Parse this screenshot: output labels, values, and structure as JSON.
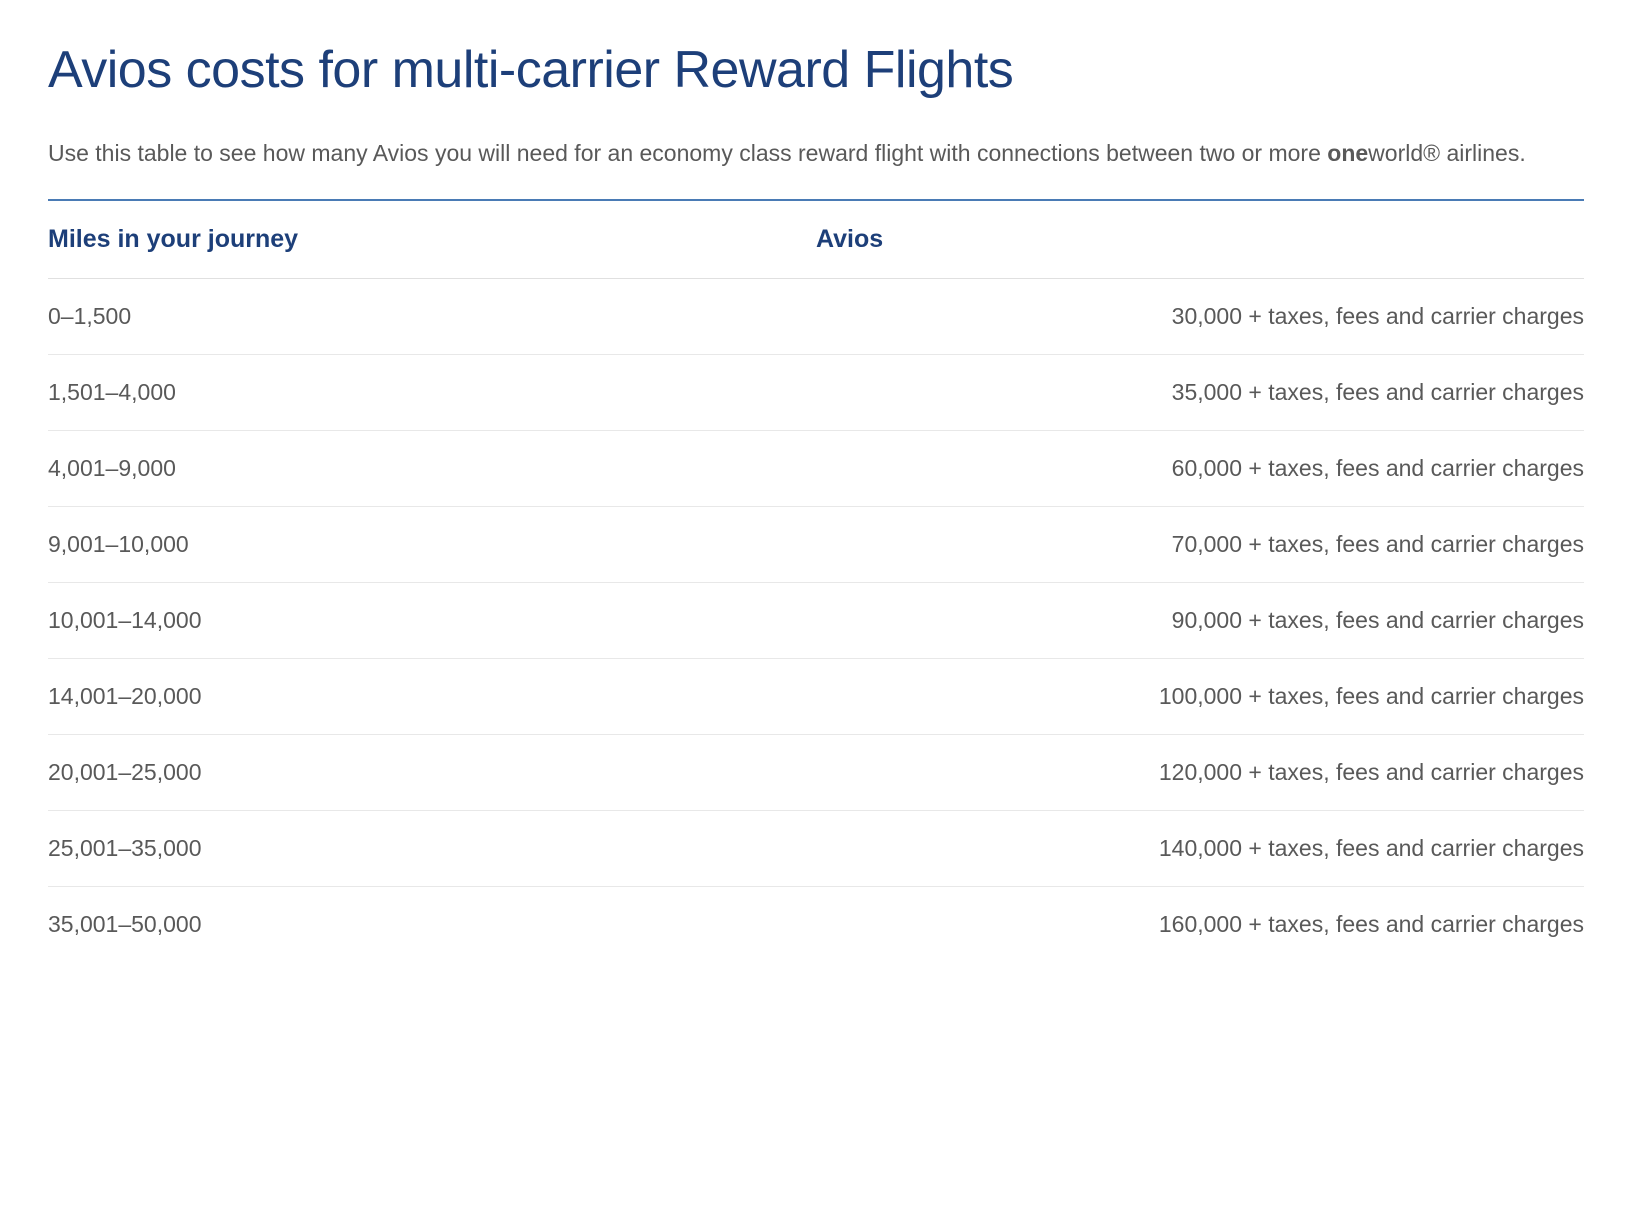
{
  "title": "Avios costs for multi-carrier Reward Flights",
  "description": {
    "prefix": "Use this table to see how many Avios you will need for an economy class reward flight with connections between two or more ",
    "bold": "one",
    "suffix": "world® airlines."
  },
  "table": {
    "headers": {
      "miles": "Miles in your journey",
      "avios": "Avios"
    },
    "rows": [
      {
        "miles": "0–1,500",
        "avios": "30,000 + taxes, fees and carrier charges"
      },
      {
        "miles": "1,501–4,000",
        "avios": "35,000 + taxes, fees and carrier charges"
      },
      {
        "miles": "4,001–9,000",
        "avios": "60,000 + taxes, fees and carrier charges"
      },
      {
        "miles": "9,001–10,000",
        "avios": "70,000 + taxes, fees and carrier charges"
      },
      {
        "miles": "10,001–14,000",
        "avios": "90,000 + taxes, fees and carrier charges"
      },
      {
        "miles": "14,001–20,000",
        "avios": "100,000 + taxes, fees and carrier charges"
      },
      {
        "miles": "20,001–25,000",
        "avios": "120,000 + taxes, fees and carrier charges"
      },
      {
        "miles": "25,001–35,000",
        "avios": "140,000 + taxes, fees and carrier charges"
      },
      {
        "miles": "35,001–50,000",
        "avios": "160,000 + taxes, fees and carrier charges"
      }
    ]
  },
  "colors": {
    "heading": "#1d3f79",
    "body_text": "#595959",
    "top_border": "#4a7bb5",
    "row_border": "#e8e8e8",
    "background": "#ffffff"
  },
  "typography": {
    "title_fontsize": 52,
    "description_fontsize": 23,
    "header_fontsize": 25,
    "cell_fontsize": 23
  }
}
